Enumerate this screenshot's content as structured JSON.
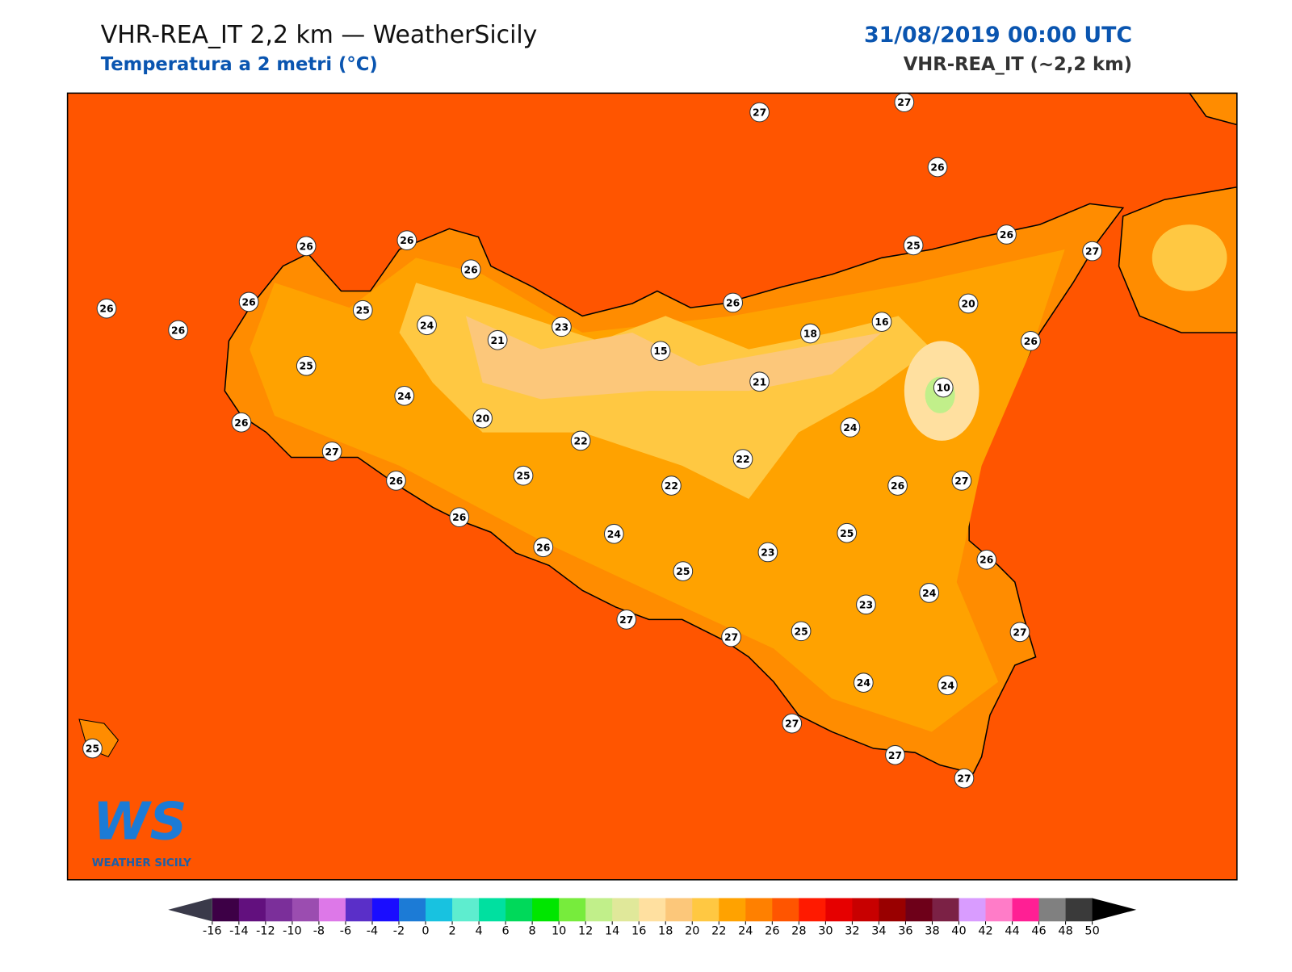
{
  "header": {
    "title": "VHR-REA_IT 2,2 km — WeatherSicily",
    "subtitle": "Temperatura a 2 metri (°C)",
    "date": "31/08/2019 00:00 UTC",
    "model": "VHR-REA_IT (~2,2 km)"
  },
  "logo": {
    "mark": "WS",
    "name": "WEATHER SICILY"
  },
  "map": {
    "station_labels": [
      27,
      27,
      26,
      26,
      26,
      26,
      25,
      26,
      27,
      26,
      26,
      25,
      26,
      24,
      21,
      23,
      26,
      18,
      16,
      20,
      26,
      25,
      15,
      21,
      10,
      24,
      26,
      20,
      24,
      27,
      22,
      22,
      25,
      22,
      26,
      26,
      27,
      26,
      24,
      25,
      26,
      23,
      26,
      25,
      23,
      24,
      27,
      27,
      25,
      27,
      24,
      24,
      27,
      25,
      27,
      27
    ]
  },
  "colorbar": {
    "ticks": [
      -16,
      -14,
      -12,
      -10,
      -8,
      -6,
      -4,
      -2,
      0,
      2,
      4,
      6,
      8,
      10,
      12,
      14,
      16,
      18,
      20,
      22,
      24,
      26,
      28,
      30,
      32,
      34,
      36,
      38,
      40,
      42,
      44,
      46,
      48,
      50
    ],
    "colors": [
      "#3d0046",
      "#62107e",
      "#7b2f9a",
      "#9b4db0",
      "#dd78e8",
      "#5a2fc8",
      "#1a0dff",
      "#1c7bd6",
      "#18c2e0",
      "#5eedcf",
      "#00e0a0",
      "#00d95a",
      "#00e600",
      "#77ec3c",
      "#c1ef8a",
      "#e0e89a",
      "#ffe0a0",
      "#fcc77a",
      "#ffc842",
      "#ffa200",
      "#ff8000",
      "#ff5500",
      "#ff1a00",
      "#e60000",
      "#c80000",
      "#990000",
      "#6e0019",
      "#7b2145",
      "#d99cff",
      "#ff7cc8",
      "#ff1f94",
      "#808080",
      "#3a3a3a"
    ],
    "under_color": "#3a3a4a",
    "over_color": "#000000"
  }
}
